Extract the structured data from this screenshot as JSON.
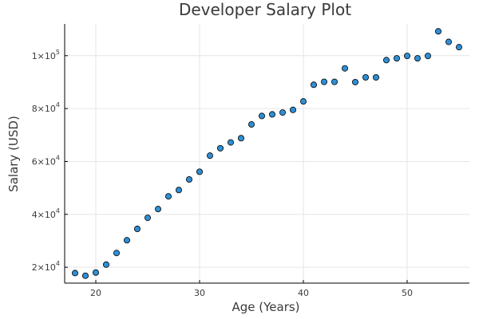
{
  "chart_data": {
    "type": "scatter",
    "title": "Developer Salary Plot",
    "xlabel": "Age (Years)",
    "ylabel": "Salary (USD)",
    "xlim": [
      17,
      56
    ],
    "ylim": [
      14000,
      112000
    ],
    "x_ticks": [
      {
        "value": 20,
        "label": "20"
      },
      {
        "value": 30,
        "label": "30"
      },
      {
        "value": 40,
        "label": "40"
      },
      {
        "value": 50,
        "label": "50"
      }
    ],
    "y_ticks": [
      {
        "value": 20000,
        "base": "2×10",
        "exp": "4"
      },
      {
        "value": 40000,
        "base": "4×10",
        "exp": "4"
      },
      {
        "value": 60000,
        "base": "6×10",
        "exp": "4"
      },
      {
        "value": 80000,
        "base": "8×10",
        "exp": "4"
      },
      {
        "value": 100000,
        "base": "1×10",
        "exp": "5"
      }
    ],
    "grid": true,
    "legend": false,
    "point_color": "#2f8fd5",
    "points": [
      {
        "x": 18,
        "y": 17800
      },
      {
        "x": 19,
        "y": 16800
      },
      {
        "x": 20,
        "y": 18000
      },
      {
        "x": 21,
        "y": 21000
      },
      {
        "x": 22,
        "y": 25400
      },
      {
        "x": 23,
        "y": 30200
      },
      {
        "x": 24,
        "y": 34500
      },
      {
        "x": 25,
        "y": 38700
      },
      {
        "x": 26,
        "y": 42000
      },
      {
        "x": 27,
        "y": 46800
      },
      {
        "x": 28,
        "y": 49200
      },
      {
        "x": 29,
        "y": 53200
      },
      {
        "x": 30,
        "y": 56100
      },
      {
        "x": 31,
        "y": 62200
      },
      {
        "x": 32,
        "y": 65000
      },
      {
        "x": 33,
        "y": 67200
      },
      {
        "x": 34,
        "y": 68800
      },
      {
        "x": 35,
        "y": 74000
      },
      {
        "x": 36,
        "y": 77200
      },
      {
        "x": 37,
        "y": 77800
      },
      {
        "x": 38,
        "y": 78500
      },
      {
        "x": 39,
        "y": 79500
      },
      {
        "x": 40,
        "y": 82700
      },
      {
        "x": 41,
        "y": 89000
      },
      {
        "x": 42,
        "y": 90100
      },
      {
        "x": 43,
        "y": 90100
      },
      {
        "x": 44,
        "y": 95200
      },
      {
        "x": 45,
        "y": 90000
      },
      {
        "x": 46,
        "y": 91800
      },
      {
        "x": 47,
        "y": 91800
      },
      {
        "x": 48,
        "y": 98300
      },
      {
        "x": 49,
        "y": 99000
      },
      {
        "x": 50,
        "y": 99900
      },
      {
        "x": 51,
        "y": 99000
      },
      {
        "x": 52,
        "y": 99900
      },
      {
        "x": 53,
        "y": 109200
      },
      {
        "x": 54,
        "y": 105200
      },
      {
        "x": 55,
        "y": 103200
      }
    ]
  }
}
